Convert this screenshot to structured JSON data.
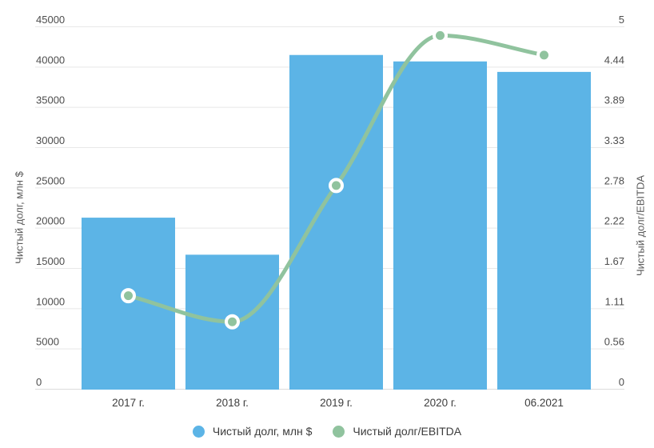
{
  "chart_data": {
    "type": "combo-bar-line",
    "categories": [
      "2017 г.",
      "2018 г.",
      "2019 г.",
      "2020 г.",
      "06.2021"
    ],
    "series": [
      {
        "name": "Чистый долг, млн $",
        "type": "bar",
        "axis": "left",
        "color": "#5CB4E6",
        "values": [
          21300,
          16700,
          41500,
          40700,
          39400
        ]
      },
      {
        "name": "Чистый долг/EBITDA",
        "type": "line",
        "axis": "right",
        "color": "#90C39E",
        "values": [
          1.29,
          0.93,
          2.81,
          4.88,
          4.61
        ]
      }
    ],
    "left_axis": {
      "title": "Чистый долг, млн $",
      "min": 0,
      "max": 45000,
      "tick_labels": [
        "0",
        "5000",
        "10000",
        "15000",
        "20000",
        "25000",
        "30000",
        "35000",
        "40000",
        "45000"
      ]
    },
    "right_axis": {
      "title": "Чистый долг/EBITDA",
      "min": 0,
      "max": 5,
      "tick_labels": [
        "0",
        "0.56",
        "1.11",
        "1.67",
        "2.22",
        "2.78",
        "3.33",
        "3.89",
        "4.44",
        "5"
      ]
    },
    "grid": true,
    "legend_position": "bottom",
    "colors": {
      "grid": "#E8E8E8",
      "baseline": "#DBDBDB",
      "marker_ring": "#FFFFFF",
      "background": "#FFFFFF"
    }
  }
}
